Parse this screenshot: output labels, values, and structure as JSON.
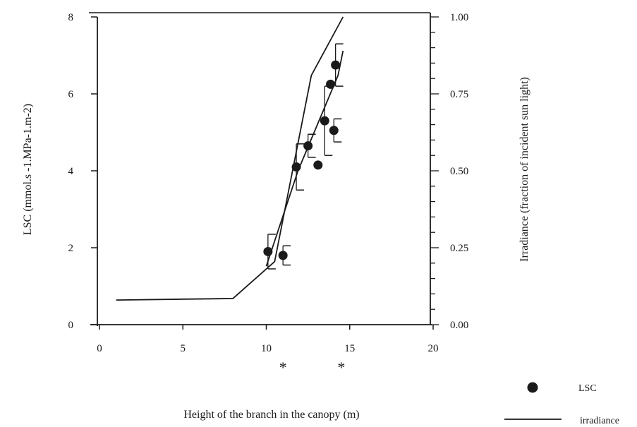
{
  "chart_data": {
    "type": "scatter",
    "title": "",
    "xlabel": "Height of the branch in the canopy (m)",
    "ylabel_left": "LSC (mmol.s -1.MPa-1.m-2)",
    "ylabel_right": "Irradiance (fraction of incident sun light)",
    "xlim": [
      0,
      20
    ],
    "ylim_left": [
      0,
      8
    ],
    "ylim_right": [
      0,
      1.0
    ],
    "x_ticks": [
      "0",
      "5",
      "10",
      "15",
      "20"
    ],
    "y_left_ticks": [
      "0",
      "2",
      "4",
      "6",
      "8"
    ],
    "y_right_ticks": [
      "0.00",
      "0.25",
      "0.50",
      "0.75",
      "1.00"
    ],
    "grid": false,
    "series": [
      {
        "name": "LSC",
        "type": "scatter",
        "axis": "left",
        "points": [
          {
            "x": 10.1,
            "y": 1.9,
            "err": 0.45
          },
          {
            "x": 11.0,
            "y": 1.8,
            "err": 0.25
          },
          {
            "x": 11.8,
            "y": 4.1,
            "err": 0.6
          },
          {
            "x": 12.5,
            "y": 4.65,
            "err": 0.3
          },
          {
            "x": 13.1,
            "y": 4.15,
            "err": 0
          },
          {
            "x": 13.5,
            "y": 5.3,
            "err": 0.9
          },
          {
            "x": 13.85,
            "y": 6.25,
            "err": 0
          },
          {
            "x": 14.05,
            "y": 5.05,
            "err": 0.3
          },
          {
            "x": 14.15,
            "y": 6.75,
            "err": 0.55
          }
        ]
      },
      {
        "name": "irradiance",
        "type": "line",
        "axis": "right",
        "lines": [
          [
            [
              1.0,
              0.08
            ],
            [
              8.0,
              0.085
            ],
            [
              10.5,
              0.205
            ],
            [
              12.7,
              0.81
            ],
            [
              14.6,
              1.0
            ]
          ],
          [
            [
              10.0,
              0.19
            ],
            [
              11.9,
              0.5
            ],
            [
              14.3,
              0.81
            ],
            [
              14.6,
              0.89
            ]
          ]
        ]
      }
    ],
    "significance_markers": [
      {
        "x": 11.0,
        "label": "*"
      },
      {
        "x": 14.5,
        "label": "*"
      }
    ],
    "legend": {
      "position": "bottom-right",
      "entries": [
        {
          "label": "LSC",
          "symbol": "dot"
        },
        {
          "label": "irradiance",
          "symbol": "line"
        }
      ]
    }
  }
}
